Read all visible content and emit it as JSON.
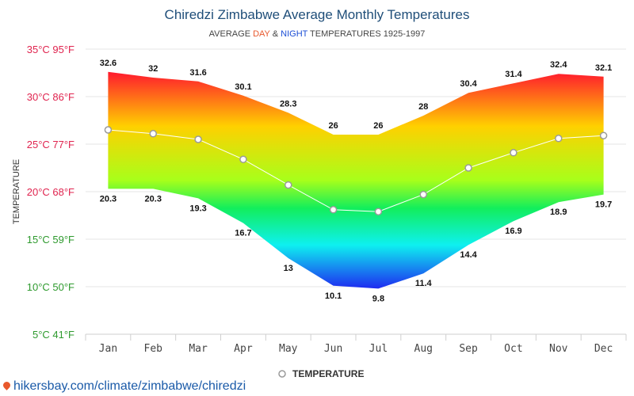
{
  "title": "Chiredzi Zimbabwe Average Monthly Temperatures",
  "subtitle": {
    "prefix": "AVERAGE ",
    "day": "DAY",
    "mid": " & ",
    "night": "NIGHT",
    "suffix": " TEMPERATURES 1925-1997"
  },
  "colors": {
    "title": "#1f4e79",
    "day": "#e8582c",
    "night": "#1d4fd6",
    "tick_hot": "#e0244f",
    "tick_warm": "#2e9a2e",
    "gradient_stops": [
      "#ff1a2e",
      "#ffd000",
      "#a8ff1a",
      "#12ee5c",
      "#0ef0f0",
      "#1e2cf0"
    ]
  },
  "footer": "hikersbay.com/climate/zimbabwe/chiredzi",
  "chart_data": {
    "type": "area",
    "title": "Chiredzi Zimbabwe Average Monthly Temperatures",
    "subtitle": "AVERAGE DAY & NIGHT TEMPERATURES 1925-1997",
    "ylabel": "TEMPERATURE",
    "ylim": [
      5,
      35
    ],
    "y_ticks": [
      {
        "value": 35,
        "label": "35°C 95°F"
      },
      {
        "value": 30,
        "label": "30°C 86°F"
      },
      {
        "value": 25,
        "label": "25°C 77°F"
      },
      {
        "value": 20,
        "label": "20°C 68°F"
      },
      {
        "value": 15,
        "label": "15°C 59°F"
      },
      {
        "value": 10,
        "label": "10°C 50°F"
      },
      {
        "value": 5,
        "label": "5°C 41°F"
      }
    ],
    "categories": [
      "Jan",
      "Feb",
      "Mar",
      "Apr",
      "May",
      "Jun",
      "Jul",
      "Aug",
      "Sep",
      "Oct",
      "Nov",
      "Dec"
    ],
    "day": [
      32.6,
      32,
      31.6,
      30.1,
      28.3,
      26,
      26,
      28,
      30.4,
      31.4,
      32.4,
      32.1
    ],
    "night": [
      20.3,
      20.3,
      19.3,
      16.7,
      13,
      10.1,
      9.8,
      11.4,
      14.4,
      16.9,
      18.9,
      19.7
    ],
    "series": [
      {
        "name": "TEMPERATURE",
        "values": [
          26.5,
          26.1,
          25.5,
          23.4,
          20.7,
          18.1,
          17.9,
          19.7,
          22.5,
          24.1,
          25.6,
          25.9
        ]
      }
    ],
    "grid": true,
    "legend": "bottom-center"
  }
}
